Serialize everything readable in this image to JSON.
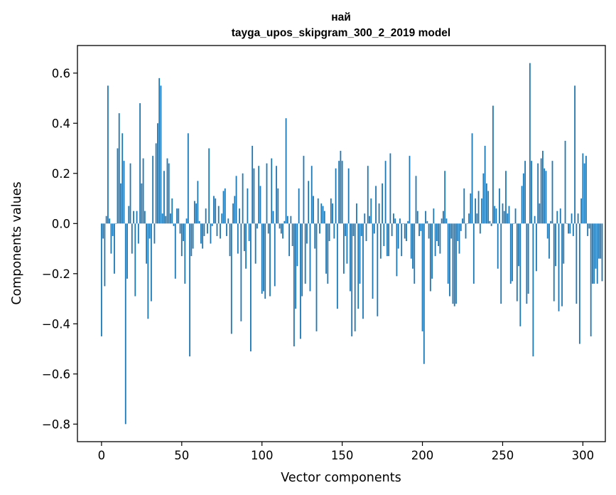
{
  "chart_data": {
    "type": "bar",
    "title": "най",
    "subtitle": "tayga_upos_skipgram_300_2_2019 model",
    "xlabel": "Vector components",
    "ylabel": "Components values",
    "xlim": [
      -15,
      314
    ],
    "ylim": [
      -0.87,
      0.71
    ],
    "xticks": [
      0,
      50,
      100,
      150,
      200,
      250,
      300
    ],
    "yticks": [
      -0.8,
      -0.6,
      -0.4,
      -0.2,
      0.0,
      0.2,
      0.4,
      0.6
    ],
    "ytick_labels": [
      "−0.8",
      "−0.6",
      "−0.4",
      "−0.2",
      "0.0",
      "0.2",
      "0.4",
      "0.6"
    ],
    "xtick_labels": [
      "0",
      "50",
      "100",
      "150",
      "200",
      "250",
      "300"
    ],
    "values": [
      -0.45,
      -0.06,
      -0.25,
      0.03,
      0.55,
      0.02,
      -0.12,
      -0.05,
      -0.2,
      0.0,
      0.3,
      0.44,
      0.16,
      0.36,
      0.25,
      -0.8,
      -0.22,
      0.07,
      0.24,
      -0.12,
      0.05,
      -0.29,
      0.05,
      -0.08,
      0.48,
      0.16,
      0.26,
      0.05,
      -0.16,
      -0.38,
      -0.06,
      -0.31,
      0.27,
      -0.08,
      0.32,
      0.4,
      0.58,
      0.55,
      0.04,
      0.21,
      0.03,
      0.26,
      0.24,
      0.04,
      0.1,
      -0.01,
      -0.22,
      0.06,
      0.06,
      -0.04,
      -0.13,
      -0.07,
      -0.24,
      0.02,
      0.36,
      -0.53,
      -0.13,
      -0.1,
      0.09,
      0.08,
      0.17,
      0.01,
      -0.08,
      -0.1,
      -0.05,
      0.06,
      -0.04,
      0.3,
      -0.08,
      -0.01,
      0.11,
      0.1,
      -0.05,
      0.07,
      -0.06,
      0.04,
      0.13,
      0.14,
      -0.05,
      0.02,
      -0.13,
      -0.44,
      0.08,
      0.11,
      0.19,
      -0.12,
      0.06,
      -0.39,
      0.2,
      -0.11,
      -0.18,
      0.14,
      -0.07,
      -0.51,
      0.31,
      0.22,
      -0.16,
      -0.02,
      0.23,
      0.15,
      -0.28,
      -0.27,
      -0.3,
      0.24,
      -0.04,
      -0.29,
      0.26,
      0.05,
      -0.25,
      0.23,
      0.14,
      -0.02,
      -0.04,
      -0.06,
      0.01,
      0.42,
      0.03,
      -0.13,
      0.03,
      -0.09,
      -0.49,
      -0.34,
      -0.17,
      0.14,
      -0.46,
      -0.29,
      0.27,
      -0.24,
      -0.08,
      0.17,
      -0.27,
      0.23,
      0.11,
      -0.1,
      -0.43,
      0.1,
      -0.04,
      0.08,
      0.07,
      0.05,
      -0.2,
      -0.24,
      -0.07,
      0.1,
      0.08,
      -0.06,
      0.22,
      -0.34,
      0.25,
      0.29,
      0.25,
      -0.2,
      -0.05,
      -0.16,
      0.22,
      -0.27,
      -0.45,
      -0.05,
      -0.43,
      0.08,
      -0.34,
      -0.24,
      -0.05,
      -0.38,
      0.04,
      -0.07,
      0.23,
      0.03,
      0.1,
      -0.3,
      -0.04,
      0.15,
      -0.37,
      0.08,
      -0.14,
      0.16,
      -0.09,
      0.25,
      -0.13,
      -0.13,
      0.28,
      -0.05,
      0.04,
      0.02,
      -0.21,
      -0.1,
      0.02,
      -0.13,
      0.0,
      -0.06,
      -0.07,
      0.01,
      0.27,
      -0.14,
      -0.18,
      -0.24,
      0.19,
      0.05,
      -0.05,
      -0.03,
      -0.43,
      -0.56,
      0.05,
      0.01,
      -0.06,
      -0.27,
      -0.22,
      0.06,
      -0.13,
      -0.07,
      -0.09,
      -0.12,
      0.02,
      0.05,
      0.21,
      0.02,
      -0.24,
      -0.29,
      -0.06,
      -0.32,
      -0.33,
      -0.32,
      -0.07,
      -0.12,
      -0.03,
      0.02,
      0.14,
      -0.06,
      0.0,
      0.04,
      0.12,
      0.36,
      -0.24,
      0.1,
      0.04,
      0.13,
      -0.04,
      0.1,
      0.2,
      0.31,
      0.16,
      0.13,
      0.01,
      -0.01,
      0.47,
      0.07,
      0.06,
      -0.18,
      0.14,
      -0.32,
      0.08,
      0.05,
      0.21,
      0.04,
      0.07,
      -0.24,
      -0.23,
      0.0,
      0.06,
      -0.31,
      -0.17,
      -0.41,
      0.15,
      0.2,
      0.25,
      -0.32,
      -0.28,
      0.64,
      0.25,
      -0.53,
      0.03,
      -0.19,
      0.24,
      0.08,
      0.26,
      0.29,
      0.22,
      0.21,
      -0.06,
      -0.14,
      0.01,
      0.25,
      -0.31,
      -0.17,
      0.05,
      -0.35,
      0.06,
      -0.33,
      -0.16,
      0.33,
      0.0,
      -0.04,
      -0.04,
      0.04,
      -0.05,
      0.55,
      -0.32,
      0.04,
      -0.48,
      0.1,
      0.28,
      0.24,
      0.27,
      -0.05,
      -0.02,
      -0.45,
      -0.24,
      -0.24,
      -0.18,
      -0.24,
      -0.14,
      -0.14,
      -0.23
    ]
  }
}
